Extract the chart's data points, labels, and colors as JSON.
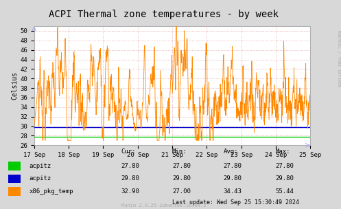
{
  "title": "ACPI Thermal zone temperatures - by week",
  "ylabel": "Celsius",
  "bg_color": "#d8d8d8",
  "plot_bg_color": "#ffffff",
  "ylim": [
    26,
    51
  ],
  "acpitz1_val": 27.8,
  "acpitz2_val": 29.8,
  "line1_color": "#00cc00",
  "line2_color": "#0000cc",
  "line3_color": "#ff8800",
  "x_labels": [
    "17 Sep",
    "18 Sep",
    "19 Sep",
    "20 Sep",
    "21 Sep",
    "22 Sep",
    "23 Sep",
    "24 Sep",
    "25 Sep"
  ],
  "legend_labels": [
    "acpitz",
    "acpitz",
    "x86_pkg_temp"
  ],
  "legend_cur": [
    "27.80",
    "29.80",
    "32.90"
  ],
  "legend_min": [
    "27.80",
    "29.80",
    "27.00"
  ],
  "legend_avg": [
    "27.80",
    "29.80",
    "34.43"
  ],
  "legend_max": [
    "27.80",
    "29.80",
    "55.44"
  ],
  "last_update": "Last update: Wed Sep 25 15:30:49 2024",
  "munin_text": "Munin 2.0.25-2ubuntu0.16.04.3",
  "rrdtool_text": "RRDTOOL / TOBI OETIKER",
  "title_fontsize": 10,
  "axis_fontsize": 6.5,
  "label_fontsize": 6.5,
  "swatch_colors": [
    "#00cc00",
    "#0000cc",
    "#ff8800"
  ]
}
